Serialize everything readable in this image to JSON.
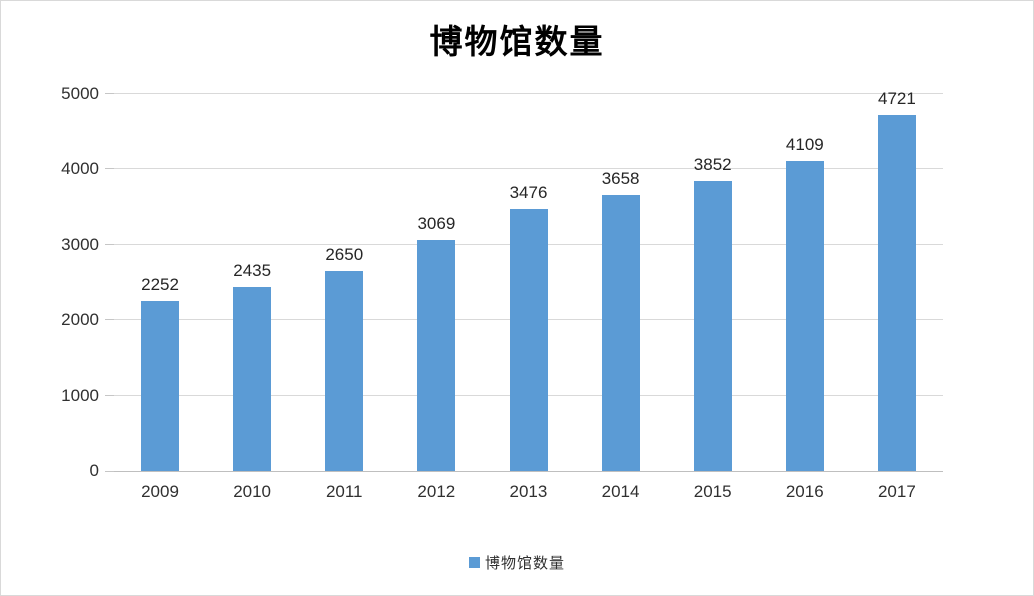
{
  "title": "博物馆数量",
  "legend": {
    "label": "博物馆数量",
    "swatch_color": "#5b9bd5"
  },
  "colors": {
    "bar": "#5b9bd5",
    "gridline": "#d9d9d9",
    "axis_line": "#bfbfbf",
    "text": "#303030",
    "border": "#d9d9d9"
  },
  "chart_data": {
    "type": "bar",
    "title": "博物馆数量",
    "categories": [
      "2009",
      "2010",
      "2011",
      "2012",
      "2013",
      "2014",
      "2015",
      "2016",
      "2017"
    ],
    "values": [
      2252,
      2435,
      2650,
      3069,
      3476,
      3658,
      3852,
      4109,
      4721
    ],
    "series": [
      {
        "name": "博物馆数量",
        "values": [
          2252,
          2435,
          2650,
          3069,
          3476,
          3658,
          3852,
          4109,
          4721
        ]
      }
    ],
    "xlabel": "",
    "ylabel": "",
    "ylim": [
      0,
      5000
    ],
    "yticks": [
      0,
      1000,
      2000,
      3000,
      4000,
      5000
    ],
    "grid": true,
    "data_labels": true,
    "legend_entries": [
      "博物馆数量"
    ],
    "legend_position": "bottom"
  }
}
